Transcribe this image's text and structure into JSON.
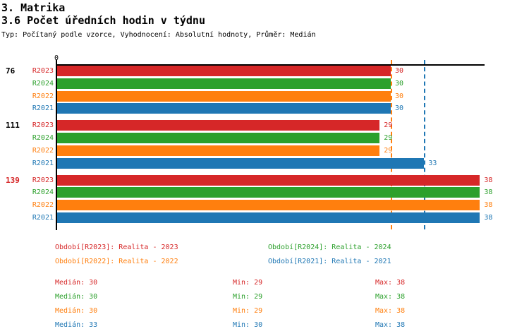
{
  "header": {
    "title": "3. Matrika",
    "subtitle": "3.6 Počet úředních hodin v týdnu",
    "meta": "Typ: Počítaný podle vzorce, Vyhodnocení: Absolutní hodnoty, Průměr: Medián"
  },
  "colors": {
    "R2023": "#d62728",
    "R2024": "#2ca02c",
    "R2022": "#ff7f0e",
    "R2021": "#1f77b4",
    "axis": "#000000",
    "highlight": "#d62728"
  },
  "chart_data": {
    "type": "bar",
    "orientation": "horizontal",
    "zero_label": "0",
    "xlim": [
      0,
      38.5
    ],
    "series_order": [
      "R2023",
      "R2024",
      "R2022",
      "R2021"
    ],
    "groups": [
      {
        "label": "76",
        "highlighted": false,
        "bars": [
          {
            "series": "R2023",
            "value": 30
          },
          {
            "series": "R2024",
            "value": 30
          },
          {
            "series": "R2022",
            "value": 30
          },
          {
            "series": "R2021",
            "value": 30
          }
        ]
      },
      {
        "label": "111",
        "highlighted": false,
        "bars": [
          {
            "series": "R2023",
            "value": 29
          },
          {
            "series": "R2024",
            "value": 29
          },
          {
            "series": "R2022",
            "value": 29
          },
          {
            "series": "R2021",
            "value": 33
          }
        ]
      },
      {
        "label": "139",
        "highlighted": true,
        "bars": [
          {
            "series": "R2023",
            "value": 38
          },
          {
            "series": "R2024",
            "value": 38
          },
          {
            "series": "R2022",
            "value": 38
          },
          {
            "series": "R2021",
            "value": 38
          }
        ]
      }
    ],
    "reference_lines": [
      {
        "series": "R2022",
        "value": 30
      },
      {
        "series": "R2021",
        "value": 33
      }
    ],
    "stats": [
      {
        "series": "R2023",
        "median": 30,
        "min": 29,
        "max": 38
      },
      {
        "series": "R2024",
        "median": 30,
        "min": 29,
        "max": 38
      },
      {
        "series": "R2022",
        "median": 30,
        "min": 29,
        "max": 38
      },
      {
        "series": "R2021",
        "median": 33,
        "min": 30,
        "max": 38
      }
    ]
  },
  "legend": {
    "items": [
      {
        "series": "R2023",
        "label": "Období[R2023]: Realita - 2023"
      },
      {
        "series": "R2024",
        "label": "Období[R2024]: Realita - 2024"
      },
      {
        "series": "R2022",
        "label": "Období[R2022]: Realita - 2022"
      },
      {
        "series": "R2021",
        "label": "Období[R2021]: Realita - 2021"
      }
    ]
  },
  "stats_panel": {
    "rows": [
      {
        "series": "R2023",
        "median_text": "Medián: 30",
        "min_text": "Min: 29",
        "max_text": "Max: 38"
      },
      {
        "series": "R2024",
        "median_text": "Medián: 30",
        "min_text": "Min: 29",
        "max_text": "Max: 38"
      },
      {
        "series": "R2022",
        "median_text": "Medián: 30",
        "min_text": "Min: 29",
        "max_text": "Max: 38"
      },
      {
        "series": "R2021",
        "median_text": "Medián: 33",
        "min_text": "Min: 30",
        "max_text": "Max: 38"
      }
    ]
  }
}
